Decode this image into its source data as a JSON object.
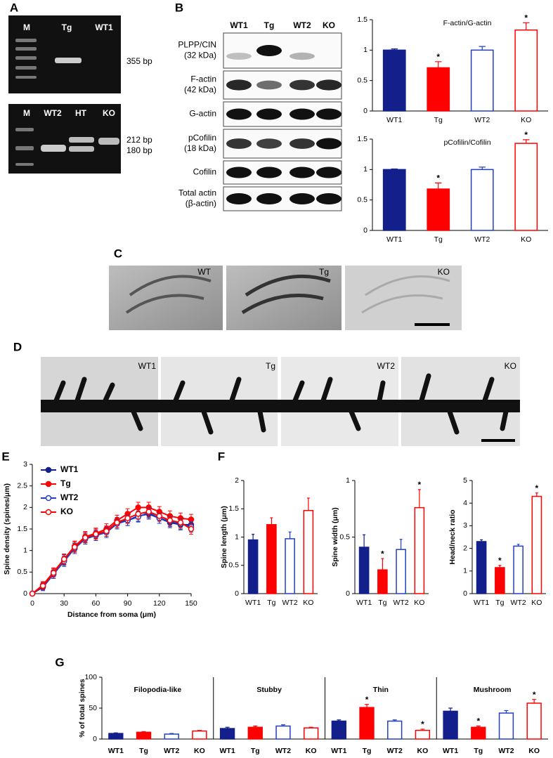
{
  "figure": {
    "panel_labels": [
      "A",
      "B",
      "C",
      "D",
      "E",
      "F",
      "G"
    ],
    "gel_top": {
      "lanes": [
        "M",
        "Tg",
        "WT1"
      ],
      "size": "355 bp"
    },
    "gel_bottom": {
      "lanes": [
        "M",
        "WT2",
        "HT",
        "KO"
      ],
      "sizes": [
        "212 bp",
        "180 bp"
      ]
    },
    "blot": {
      "lanes": [
        "WT1",
        "Tg",
        "WT2",
        "KO"
      ],
      "rows": [
        [
          "PLPP/CIN",
          "(32 kDa)"
        ],
        [
          "F-actin",
          "(42 kDa)"
        ],
        [
          "G-actin"
        ],
        [
          "pCofilin",
          "(18 kDa)"
        ],
        [
          "Cofilin"
        ],
        [
          "Total actin",
          "(β-actin)"
        ]
      ]
    },
    "hippocampus_labels": [
      "WT",
      "Tg",
      "KO"
    ],
    "dendrite_labels": [
      "WT1",
      "Tg",
      "WT2",
      "KO"
    ]
  },
  "chart_data": [
    {
      "type": "bar",
      "title": "F-actin/G-actin",
      "categories": [
        "WT1",
        "Tg",
        "WT2",
        "KO"
      ],
      "values": [
        1.0,
        0.71,
        1.0,
        1.33
      ],
      "errors": [
        0.02,
        0.1,
        0.06,
        0.12
      ],
      "colors": [
        "#13208c",
        "#ff0000",
        "#2040c0",
        "#ff0000"
      ],
      "hollow": [
        false,
        false,
        true,
        true
      ],
      "significance": [
        null,
        "*",
        null,
        "*"
      ],
      "ylim": [
        0,
        1.5
      ],
      "yticks": [
        0,
        0.5,
        1,
        1.5
      ]
    },
    {
      "type": "bar",
      "title": "pCofilin/Cofilin",
      "categories": [
        "WT1",
        "Tg",
        "WT2",
        "KO"
      ],
      "values": [
        1.0,
        0.68,
        1.0,
        1.43
      ],
      "errors": [
        0.01,
        0.1,
        0.04,
        0.06
      ],
      "colors": [
        "#13208c",
        "#ff0000",
        "#2040c0",
        "#ff0000"
      ],
      "hollow": [
        false,
        false,
        true,
        true
      ],
      "significance": [
        null,
        "*",
        null,
        "*"
      ],
      "ylim": [
        0,
        1.5
      ],
      "yticks": [
        0,
        0.5,
        1,
        1.5
      ]
    },
    {
      "type": "line",
      "ylabel": "Spine density (spines/μm)",
      "xlabel": "Distance from soma (μm)",
      "xlim": [
        0,
        150
      ],
      "xticks": [
        0,
        30,
        60,
        90,
        120,
        150
      ],
      "ylim": [
        0,
        3
      ],
      "yticks": [
        0,
        0.5,
        1,
        1.5,
        2,
        2.5,
        3
      ],
      "x": [
        0,
        10,
        20,
        30,
        40,
        50,
        60,
        70,
        80,
        90,
        100,
        110,
        120,
        130,
        140,
        150
      ],
      "series": [
        {
          "name": "WT1",
          "color": "#13208c",
          "hollow": false,
          "values": [
            0,
            0.15,
            0.45,
            0.78,
            1.05,
            1.3,
            1.35,
            1.45,
            1.65,
            1.7,
            1.8,
            1.85,
            1.75,
            1.65,
            1.6,
            1.6
          ],
          "errors": [
            0,
            0.08,
            0.1,
            0.12,
            0.12,
            0.12,
            0.12,
            0.12,
            0.12,
            0.12,
            0.12,
            0.12,
            0.12,
            0.12,
            0.12,
            0.12
          ]
        },
        {
          "name": "Tg",
          "color": "#ff0000",
          "hollow": false,
          "values": [
            0,
            0.2,
            0.5,
            0.8,
            1.1,
            1.32,
            1.4,
            1.5,
            1.7,
            1.85,
            2.0,
            2.0,
            1.9,
            1.8,
            1.75,
            1.72
          ],
          "errors": [
            0,
            0.08,
            0.1,
            0.12,
            0.12,
            0.12,
            0.12,
            0.12,
            0.12,
            0.12,
            0.12,
            0.12,
            0.12,
            0.12,
            0.12,
            0.12
          ]
        },
        {
          "name": "WT2",
          "color": "#2040c0",
          "hollow": true,
          "values": [
            0,
            0.17,
            0.45,
            0.75,
            1.05,
            1.27,
            1.35,
            1.42,
            1.62,
            1.7,
            1.78,
            1.88,
            1.75,
            1.68,
            1.62,
            1.55
          ],
          "errors": [
            0,
            0.08,
            0.1,
            0.12,
            0.12,
            0.12,
            0.12,
            0.12,
            0.12,
            0.12,
            0.12,
            0.12,
            0.12,
            0.12,
            0.12,
            0.12
          ]
        },
        {
          "name": "KO",
          "color": "#ff0000",
          "hollow": true,
          "values": [
            0,
            0.18,
            0.48,
            0.8,
            1.08,
            1.3,
            1.38,
            1.45,
            1.65,
            1.75,
            1.85,
            1.9,
            1.8,
            1.7,
            1.65,
            1.5
          ],
          "errors": [
            0,
            0.08,
            0.1,
            0.12,
            0.12,
            0.12,
            0.12,
            0.12,
            0.12,
            0.12,
            0.12,
            0.12,
            0.12,
            0.12,
            0.12,
            0.12
          ]
        }
      ]
    },
    {
      "type": "bar",
      "ylabel": "Spine length (μm)",
      "categories": [
        "WT1",
        "Tg",
        "WT2",
        "KO"
      ],
      "values": [
        0.95,
        1.22,
        0.97,
        1.47
      ],
      "errors": [
        0.1,
        0.12,
        0.12,
        0.22
      ],
      "colors": [
        "#13208c",
        "#ff0000",
        "#2040c0",
        "#ff0000"
      ],
      "hollow": [
        false,
        false,
        true,
        true
      ],
      "ylim": [
        0,
        2
      ],
      "yticks": [
        0,
        0.5,
        1,
        1.5,
        2
      ]
    },
    {
      "type": "bar",
      "ylabel": "Spine width (μm)",
      "categories": [
        "WT1",
        "Tg",
        "WT2",
        "KO"
      ],
      "values": [
        0.41,
        0.21,
        0.39,
        0.76
      ],
      "errors": [
        0.11,
        0.1,
        0.09,
        0.16
      ],
      "colors": [
        "#13208c",
        "#ff0000",
        "#2040c0",
        "#ff0000"
      ],
      "hollow": [
        false,
        false,
        true,
        true
      ],
      "significance": [
        null,
        "*",
        null,
        "*"
      ],
      "ylim": [
        0,
        1
      ],
      "yticks": [
        0,
        0.5,
        1
      ]
    },
    {
      "type": "bar",
      "ylabel": "Head/neck ratio",
      "categories": [
        "WT1",
        "Tg",
        "WT2",
        "KO"
      ],
      "values": [
        2.3,
        1.15,
        2.1,
        4.3
      ],
      "errors": [
        0.08,
        0.1,
        0.08,
        0.15
      ],
      "colors": [
        "#13208c",
        "#ff0000",
        "#2040c0",
        "#ff0000"
      ],
      "hollow": [
        false,
        false,
        true,
        true
      ],
      "significance": [
        null,
        "*",
        null,
        "*"
      ],
      "ylim": [
        0,
        5
      ],
      "yticks": [
        0,
        1,
        2,
        3,
        4,
        5
      ]
    },
    {
      "type": "grouped_bar",
      "ylabel": "% of total spines",
      "categories": [
        "Filopodia-like",
        "Stubby",
        "Thin",
        "Mushroom"
      ],
      "ylim": [
        0,
        100
      ],
      "yticks": [
        0,
        50,
        100
      ],
      "series": [
        {
          "name": "WT1",
          "color": "#13208c",
          "hollow": false,
          "values": [
            9,
            17,
            29,
            45
          ],
          "errors": [
            1,
            2,
            2,
            5
          ],
          "significance": [
            null,
            null,
            null,
            null
          ]
        },
        {
          "name": "Tg",
          "color": "#ff0000",
          "hollow": false,
          "values": [
            11,
            19,
            51,
            19
          ],
          "errors": [
            1,
            2,
            5,
            2
          ],
          "significance": [
            null,
            null,
            "*",
            "*"
          ]
        },
        {
          "name": "WT2",
          "color": "#2040c0",
          "hollow": true,
          "values": [
            8,
            21,
            29,
            42
          ],
          "errors": [
            1,
            2,
            2,
            4
          ],
          "significance": [
            null,
            null,
            null,
            null
          ]
        },
        {
          "name": "KO",
          "color": "#ff0000",
          "hollow": true,
          "values": [
            13,
            18,
            14,
            58
          ],
          "errors": [
            1,
            1,
            2,
            6
          ],
          "significance": [
            null,
            null,
            "*",
            "*"
          ]
        }
      ]
    }
  ]
}
